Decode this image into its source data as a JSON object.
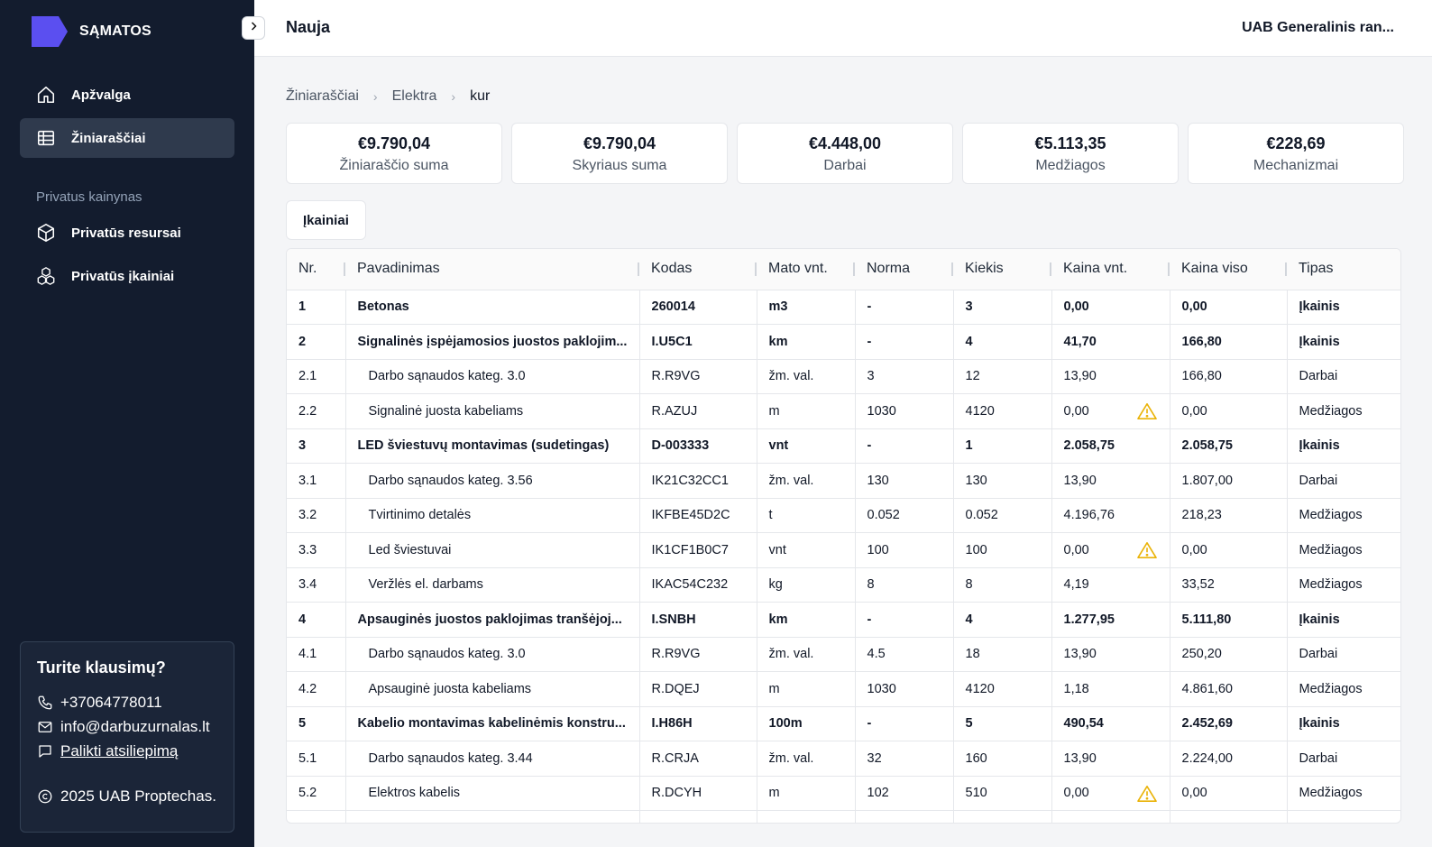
{
  "app": {
    "name": "SĄMATOS"
  },
  "nav": {
    "items": [
      {
        "label": "Apžvalga",
        "icon": "home-icon"
      },
      {
        "label": "Žiniaraščiai",
        "icon": "table-icon",
        "active": true
      }
    ],
    "section_title": "Privatus kainynas",
    "private_items": [
      {
        "label": "Privatūs resursai",
        "icon": "cube-icon"
      },
      {
        "label": "Privatūs įkainiai",
        "icon": "cubes-icon"
      }
    ]
  },
  "help": {
    "title": "Turite klausimų?",
    "phone": "+37064778011",
    "email": "info@darbuzurnalas.lt",
    "feedback": "Palikti atsiliepimą",
    "copyright": "2025 UAB Proptechas."
  },
  "topbar": {
    "title": "Nauja",
    "org": "UAB Generalinis ran..."
  },
  "breadcrumb": [
    "Žiniaraščiai",
    "Elektra",
    "kur"
  ],
  "stats": [
    {
      "value": "€9.790,04",
      "label": "Žiniaraščio suma"
    },
    {
      "value": "€9.790,04",
      "label": "Skyriaus suma"
    },
    {
      "value": "€4.448,00",
      "label": "Darbai"
    },
    {
      "value": "€5.113,35",
      "label": "Medžiagos"
    },
    {
      "value": "€228,69",
      "label": "Mechanizmai"
    }
  ],
  "tab": {
    "label": "Įkainiai"
  },
  "table": {
    "columns": [
      "Nr.",
      "Pavadinimas",
      "Kodas",
      "Mato vnt.",
      "Norma",
      "Kiekis",
      "Kaina vnt.",
      "Kaina viso",
      "Tipas"
    ],
    "rows": [
      {
        "nr": "1",
        "name": "Betonas",
        "code": "260014",
        "unit": "m3",
        "norm": "-",
        "qty": "3",
        "price": "0,00",
        "total": "0,00",
        "type": "Įkainis",
        "main": true
      },
      {
        "nr": "2",
        "name": "Signalinės įspėjamosios juostos paklojim...",
        "code": "I.U5C1",
        "unit": "km",
        "norm": "-",
        "qty": "4",
        "price": "41,70",
        "total": "166,80",
        "type": "Įkainis",
        "main": true
      },
      {
        "nr": "2.1",
        "name": "Darbo sąnaudos kateg. 3.0",
        "code": "R.R9VG",
        "unit": "žm. val.",
        "norm": "3",
        "qty": "12",
        "price": "13,90",
        "total": "166,80",
        "type": "Darbai"
      },
      {
        "nr": "2.2",
        "name": "Signalinė juosta kabeliams",
        "code": "R.AZUJ",
        "unit": "m",
        "norm": "1030",
        "qty": "4120",
        "price": "0,00",
        "total": "0,00",
        "type": "Medžiagos",
        "warn": true
      },
      {
        "nr": "3",
        "name": "LED šviestuvų montavimas (sudetingas)",
        "code": "D-003333",
        "unit": "vnt",
        "norm": "-",
        "qty": "1",
        "price": "2.058,75",
        "total": "2.058,75",
        "type": "Įkainis",
        "main": true
      },
      {
        "nr": "3.1",
        "name": "Darbo sąnaudos kateg. 3.56",
        "code": "IK21C32CC1",
        "unit": "žm. val.",
        "norm": "130",
        "qty": "130",
        "price": "13,90",
        "total": "1.807,00",
        "type": "Darbai"
      },
      {
        "nr": "3.2",
        "name": "Tvirtinimo detalės",
        "code": "IKFBE45D2C",
        "unit": "t",
        "norm": "0.052",
        "qty": "0.052",
        "price": "4.196,76",
        "total": "218,23",
        "type": "Medžiagos"
      },
      {
        "nr": "3.3",
        "name": "Led šviestuvai",
        "code": "IK1CF1B0C7",
        "unit": "vnt",
        "norm": "100",
        "qty": "100",
        "price": "0,00",
        "total": "0,00",
        "type": "Medžiagos",
        "warn": true
      },
      {
        "nr": "3.4",
        "name": "Veržlės el. darbams",
        "code": "IKAC54C232",
        "unit": "kg",
        "norm": "8",
        "qty": "8",
        "price": "4,19",
        "total": "33,52",
        "type": "Medžiagos"
      },
      {
        "nr": "4",
        "name": "Apsauginės juostos paklojimas tranšėjoj...",
        "code": "I.SNBH",
        "unit": "km",
        "norm": "-",
        "qty": "4",
        "price": "1.277,95",
        "total": "5.111,80",
        "type": "Įkainis",
        "main": true
      },
      {
        "nr": "4.1",
        "name": "Darbo sąnaudos kateg. 3.0",
        "code": "R.R9VG",
        "unit": "žm. val.",
        "norm": "4.5",
        "qty": "18",
        "price": "13,90",
        "total": "250,20",
        "type": "Darbai"
      },
      {
        "nr": "4.2",
        "name": "Apsauginė juosta kabeliams",
        "code": "R.DQEJ",
        "unit": "m",
        "norm": "1030",
        "qty": "4120",
        "price": "1,18",
        "total": "4.861,60",
        "type": "Medžiagos"
      },
      {
        "nr": "5",
        "name": "Kabelio montavimas kabelinėmis konstru...",
        "code": "I.H86H",
        "unit": "100m",
        "norm": "-",
        "qty": "5",
        "price": "490,54",
        "total": "2.452,69",
        "type": "Įkainis",
        "main": true
      },
      {
        "nr": "5.1",
        "name": "Darbo sąnaudos kateg. 3.44",
        "code": "R.CRJA",
        "unit": "žm. val.",
        "norm": "32",
        "qty": "160",
        "price": "13,90",
        "total": "2.224,00",
        "type": "Darbai"
      },
      {
        "nr": "5.2",
        "name": "Elektros kabelis",
        "code": "R.DCYH",
        "unit": "m",
        "norm": "102",
        "qty": "510",
        "price": "0,00",
        "total": "0,00",
        "type": "Medžiagos",
        "warn": true
      }
    ]
  }
}
